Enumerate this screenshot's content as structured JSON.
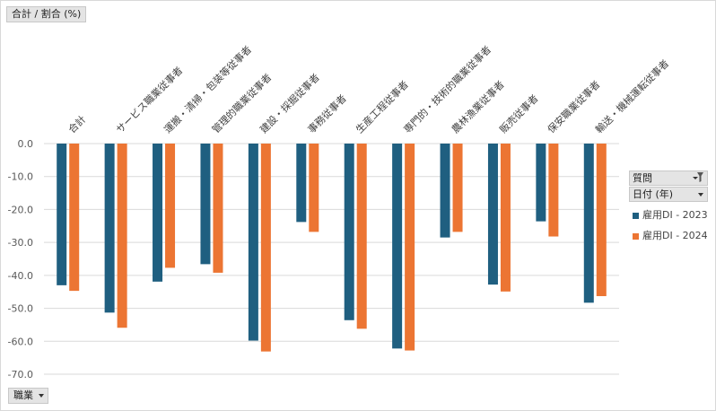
{
  "value_field_button": {
    "label": "合計 / 割合 (%)"
  },
  "axis_field_button": {
    "label": "職業"
  },
  "legend": {
    "field1": "質問",
    "field2": "日付 (年)",
    "items": [
      "雇用DI - 2023",
      "雇用DI - 2024"
    ]
  },
  "colors": {
    "series1": "#1f5f80",
    "series2": "#ec7533"
  },
  "chart_data": {
    "type": "bar",
    "title": "",
    "xlabel": "",
    "ylabel": "",
    "ylim": [
      -70,
      0
    ],
    "yticks": [
      "0.0",
      "-10.0",
      "-20.0",
      "-30.0",
      "-40.0",
      "-50.0",
      "-60.0",
      "-70.0"
    ],
    "grid": true,
    "legend_position": "right",
    "categories": [
      "合計",
      "サービス職業従事者",
      "運搬・清掃・包装等従事者",
      "管理的職業従事者",
      "建設・採掘従事者",
      "事務従事者",
      "生産工程従事者",
      "専門的・技術的職業従事者",
      "農林漁業従事者",
      "販売従事者",
      "保安職業従事者",
      "輸送・機械運転従事者"
    ],
    "series": [
      {
        "name": "雇用DI - 2023",
        "values": [
          -43.0,
          -51.3,
          -41.9,
          -36.6,
          -59.8,
          -23.8,
          -53.6,
          -62.2,
          -28.5,
          -42.8,
          -23.6,
          -48.3
        ]
      },
      {
        "name": "雇用DI - 2024",
        "values": [
          -44.7,
          -55.9,
          -37.7,
          -39.2,
          -63.1,
          -26.8,
          -56.2,
          -62.8,
          -26.8,
          -44.9,
          -28.2,
          -46.3
        ]
      }
    ]
  }
}
